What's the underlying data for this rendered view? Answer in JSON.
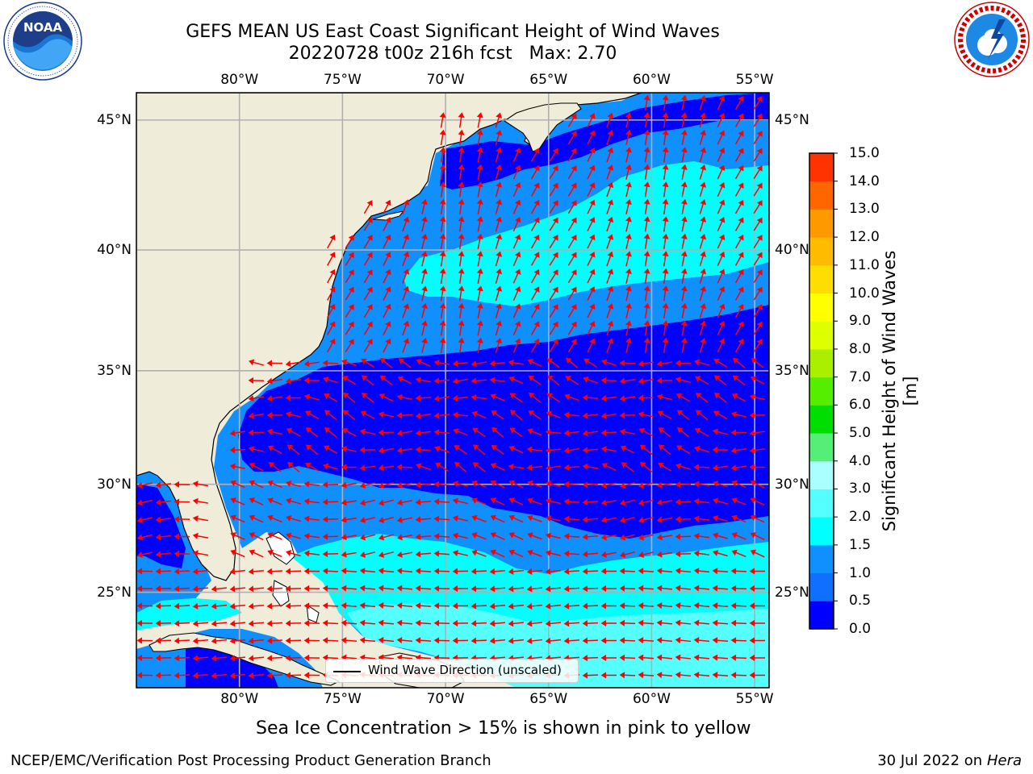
{
  "header": {
    "title_line1": "GEFS MEAN US East Coast Significant Height of Wind Waves",
    "title_line2": "20220728 t00z 216h fcst   Max: 2.70"
  },
  "logos": {
    "left": {
      "text": "NOAA",
      "ring_text": "NATIONAL OCEANIC AND ATMOSPHERIC ADMINISTRATION · U.S. DEPARTMENT OF COMMERCE"
    },
    "right": {
      "ring_text": "NATIONAL WEATHER SERVICE"
    }
  },
  "map": {
    "lon_ticks": [
      "80°W",
      "75°W",
      "70°W",
      "65°W",
      "60°W",
      "55°W"
    ],
    "lat_ticks": [
      "45°N",
      "40°N",
      "35°N",
      "30°N",
      "25°N"
    ],
    "legend_label": "Wind Wave Direction (unscaled)",
    "colors": {
      "land": "#efedda",
      "grid": "#b0b0b0",
      "arrow": "#ff0000",
      "coast": "#000000"
    }
  },
  "colorbar": {
    "title": "Significant Height of Wind Waves [m]",
    "ticks": [
      "0.0",
      "0.5",
      "1.0",
      "1.5",
      "2.0",
      "3.0",
      "4.0",
      "5.0",
      "6.0",
      "7.0",
      "8.0",
      "9.0",
      "10.0",
      "11.0",
      "12.0",
      "13.0",
      "14.0",
      "15.0"
    ],
    "colors": [
      "#0000ff",
      "#0f6fff",
      "#1090ff",
      "#00ffff",
      "#55ffff",
      "#aaffff",
      "#55ee77",
      "#00dd00",
      "#55ee00",
      "#aaee00",
      "#ddff00",
      "#ffff00",
      "#ffdd00",
      "#ffbb00",
      "#ff9900",
      "#ff6600",
      "#ff3300",
      "#ff0000"
    ]
  },
  "chart_data": {
    "type": "heatmap",
    "title": "GEFS MEAN US East Coast Significant Height of Wind Waves",
    "subtitle": "20220728 t00z 216h fcst   Max: 2.70",
    "variable": "Significant Height of Wind Waves [m]",
    "lon_range": [
      -85,
      -54.3
    ],
    "lat_range": [
      20.4,
      46
    ],
    "grid": true,
    "legend": "bottom-center",
    "color_levels": [
      0.0,
      0.5,
      1.0,
      1.5,
      2.0,
      3.0,
      4.0,
      5.0,
      6.0,
      7.0,
      8.0,
      9.0,
      10.0,
      11.0,
      12.0,
      13.0,
      14.0,
      15.0
    ],
    "max_value": 2.7
  },
  "footer": {
    "note": "Sea Ice Concentration > 15% is shown in pink to yellow",
    "left": "NCEP/EMC/Verification Post Processing Product Generation Branch",
    "right_prefix": "30 Jul 2022 on ",
    "right_machine": "Hera"
  }
}
